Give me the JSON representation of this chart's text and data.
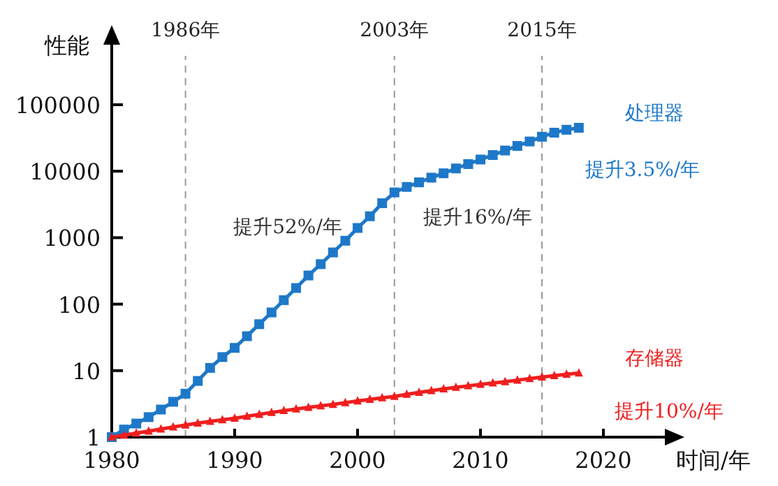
{
  "chart_data": {
    "type": "line",
    "xlabel": "时间/年",
    "ylabel": "性能",
    "log": "y",
    "grid": false,
    "legend": false,
    "x": [
      1980,
      1981,
      1982,
      1983,
      1984,
      1985,
      1986,
      1987,
      1988,
      1989,
      1990,
      1991,
      1992,
      1993,
      1994,
      1995,
      1996,
      1997,
      1998,
      1999,
      2000,
      2001,
      2002,
      2003,
      2004,
      2005,
      2006,
      2007,
      2008,
      2009,
      2010,
      2011,
      2012,
      2013,
      2014,
      2015,
      2016,
      2017,
      2018
    ],
    "series": [
      {
        "name": "处理器",
        "color": "#1e78c8",
        "marker": "square",
        "values": [
          1,
          1.3,
          1.6,
          2,
          2.6,
          3.4,
          4.5,
          7,
          11,
          16,
          22,
          33,
          50,
          75,
          115,
          175,
          270,
          400,
          600,
          900,
          1400,
          2100,
          3300,
          4800,
          5800,
          6800,
          8000,
          9300,
          11000,
          12800,
          15000,
          17500,
          20500,
          24000,
          28000,
          33000,
          38000,
          42000,
          45000
        ]
      },
      {
        "name": "存储器",
        "color": "#f01e1e",
        "marker": "triangle",
        "values": [
          1,
          1.07,
          1.15,
          1.23,
          1.32,
          1.42,
          1.52,
          1.62,
          1.72,
          1.82,
          1.92,
          2.05,
          2.2,
          2.35,
          2.5,
          2.65,
          2.8,
          2.95,
          3.1,
          3.3,
          3.5,
          3.7,
          3.9,
          4.1,
          4.4,
          4.7,
          5,
          5.3,
          5.6,
          5.9,
          6.2,
          6.5,
          6.8,
          7.2,
          7.6,
          8,
          8.4,
          8.8,
          9.2
        ]
      }
    ],
    "xlim": [
      1980,
      2025
    ],
    "ylim": [
      1,
      800000
    ],
    "xticks": [
      1980,
      1990,
      2000,
      2010,
      2020
    ],
    "yticks": [
      1,
      10,
      100,
      1000,
      10000,
      100000
    ],
    "ref_lines": [
      {
        "axis": "x",
        "value": 1986,
        "label": "1986年",
        "color": "#999999",
        "line_style": "dashed"
      },
      {
        "axis": "x",
        "value": 2003,
        "label": "2003年",
        "color": "#999999",
        "line_style": "dashed"
      },
      {
        "axis": "x",
        "value": 2015,
        "label": "2015年",
        "color": "#999999",
        "line_style": "dashed"
      }
    ],
    "annotations": [
      "提升52%/年",
      "提升16%/年",
      "提升3.5%/年",
      "提升10%/年"
    ]
  }
}
